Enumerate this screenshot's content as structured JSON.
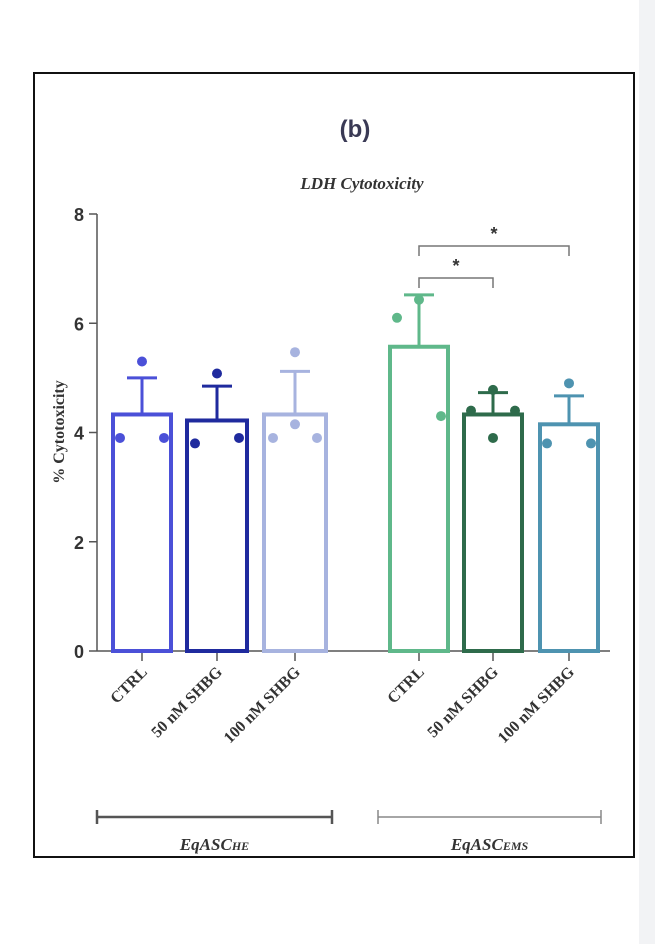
{
  "panel_label": "(b)",
  "chart_data": {
    "type": "bar",
    "title": "LDH Cytotoxicity",
    "ylabel": "% Cytotoxicity",
    "xlabel": "",
    "ylim": [
      0,
      8
    ],
    "yticks": [
      0,
      2,
      4,
      6,
      8
    ],
    "grid": false,
    "groups": [
      {
        "name_main": "EqASC",
        "name_sub": "HE",
        "categories": [
          "CTRL",
          "50 nM SHBG",
          "100 nM SHBG"
        ]
      },
      {
        "name_main": "EqASC",
        "name_sub": "EMS",
        "categories": [
          "CTRL",
          "50 nM SHBG",
          "100 nM SHBG"
        ]
      }
    ],
    "bars": [
      {
        "group": 0,
        "category": "CTRL",
        "mean": 4.33,
        "error_upper": 5.0,
        "points": [
          5.3,
          3.9,
          3.9
        ],
        "color": "#4b50d8"
      },
      {
        "group": 0,
        "category": "50 nM SHBG",
        "mean": 4.22,
        "error_upper": 4.85,
        "points": [
          5.08,
          3.8,
          3.9
        ],
        "color": "#1f2a9e"
      },
      {
        "group": 0,
        "category": "100 nM SHBG",
        "mean": 4.33,
        "error_upper": 5.12,
        "points": [
          5.47,
          3.9,
          3.9,
          4.15
        ],
        "color": "#a7b3df"
      },
      {
        "group": 1,
        "category": "CTRL",
        "mean": 5.57,
        "error_upper": 6.52,
        "points": [
          6.43,
          6.1,
          4.3
        ],
        "color": "#5fb88a"
      },
      {
        "group": 1,
        "category": "50 nM SHBG",
        "mean": 4.33,
        "error_upper": 4.73,
        "points": [
          4.78,
          4.4,
          4.4,
          3.9
        ],
        "color": "#2e6b4b"
      },
      {
        "group": 1,
        "category": "100 nM SHBG",
        "mean": 4.15,
        "error_upper": 4.67,
        "points": [
          4.9,
          3.8,
          3.8
        ],
        "color": "#4e93b0"
      }
    ],
    "significance": [
      {
        "from": 3,
        "to": 4,
        "label": "*"
      },
      {
        "from": 3,
        "to": 5,
        "label": "*"
      }
    ]
  }
}
